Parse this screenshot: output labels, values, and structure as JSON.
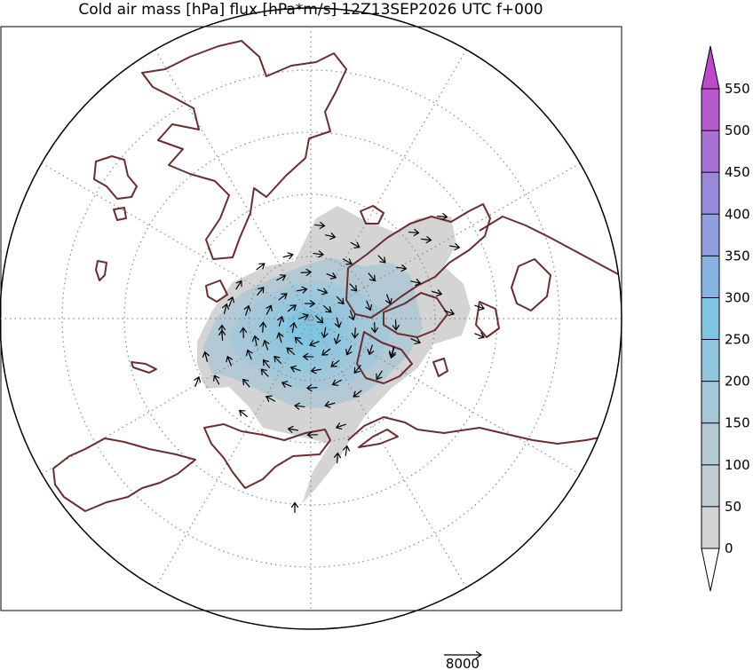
{
  "chart_data": {
    "type": "map",
    "title": "Cold air mass [hPa] flux [hPa*m/s] 12Z13SEP2026 UTC f+000",
    "projection": "north polar stereographic",
    "field": "Cold air mass",
    "field_unit": "hPa",
    "vector": "flux",
    "vector_unit": "hPa*m/s",
    "valid_time": "12Z13SEP2026 UTC",
    "forecast_step": "f+000",
    "colorbar": {
      "levels": [
        0,
        50,
        100,
        150,
        200,
        250,
        300,
        350,
        400,
        450,
        500,
        550
      ],
      "tick_labels": [
        "0",
        "50",
        "100",
        "150",
        "200",
        "250",
        "300",
        "350",
        "400",
        "450",
        "500",
        "550"
      ],
      "colors": [
        "#d4d4d4",
        "#c3ccd0",
        "#b3c9d3",
        "#a4c8d9",
        "#90c6de",
        "#7fc5e2",
        "#85b4e2",
        "#909fdf",
        "#9a88da",
        "#a872d5",
        "#b65bcf"
      ],
      "extend_low_color": "#ffffff",
      "extend_high_color": "#bf48c9"
    },
    "reference_vector": {
      "value": 8000,
      "label": "8000"
    },
    "graticule": "dotted",
    "coastline_color": "#6b2d2d"
  }
}
